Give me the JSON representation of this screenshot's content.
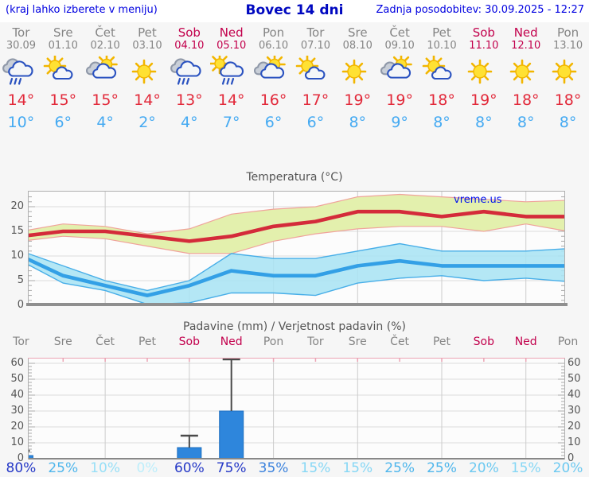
{
  "header": {
    "left_note": "(kraj lahko izberete v meniju)",
    "title": "Bovec 14 dni",
    "updated": "Zadnja posodobitev: 30.09.2025 - 12:27"
  },
  "watermark": "vreme.us",
  "colors": {
    "accent_blue": "#0000e0",
    "weekend_red": "#c2004c",
    "weekday_gray": "#848484",
    "tmax_red": "#e2293a",
    "tmin_blue": "#45aaf2",
    "max_band": "#e3f0ad",
    "max_band_edge": "#f0a39b",
    "min_band": "#aae4f4",
    "min_band_edge": "#47aee8",
    "bar_blue": "#2e86dc",
    "grid": "#dddddd",
    "precip_top_border": "#eba4b4"
  },
  "days": [
    {
      "name": "Tor",
      "date": "30.09",
      "weekend": false,
      "icon": "rain",
      "tmax": "14°",
      "tmin": "10°",
      "prob": "80%",
      "prob_color": "#2639c7"
    },
    {
      "name": "Sre",
      "date": "01.10",
      "weekend": false,
      "icon": "sun-cloud",
      "tmax": "15°",
      "tmin": "6°",
      "prob": "25%",
      "prob_color": "#4fb6ec"
    },
    {
      "name": "Čet",
      "date": "02.10",
      "weekend": false,
      "icon": "cloud-sun",
      "tmax": "15°",
      "tmin": "4°",
      "prob": "10%",
      "prob_color": "#97dff7"
    },
    {
      "name": "Pet",
      "date": "03.10",
      "weekend": false,
      "icon": "sun",
      "tmax": "14°",
      "tmin": "2°",
      "prob": "0%",
      "prob_color": "#bdeefb"
    },
    {
      "name": "Sob",
      "date": "04.10",
      "weekend": true,
      "icon": "rain",
      "tmax": "13°",
      "tmin": "4°",
      "prob": "60%",
      "prob_color": "#2639c7"
    },
    {
      "name": "Ned",
      "date": "05.10",
      "weekend": true,
      "icon": "sun-rain",
      "tmax": "14°",
      "tmin": "7°",
      "prob": "75%",
      "prob_color": "#2639c7"
    },
    {
      "name": "Pon",
      "date": "06.10",
      "weekend": false,
      "icon": "cloud-sun",
      "tmax": "16°",
      "tmin": "6°",
      "prob": "35%",
      "prob_color": "#3b82dd"
    },
    {
      "name": "Tor",
      "date": "07.10",
      "weekend": false,
      "icon": "sun-cloud",
      "tmax": "17°",
      "tmin": "6°",
      "prob": "15%",
      "prob_color": "#86d7f5"
    },
    {
      "name": "Sre",
      "date": "08.10",
      "weekend": false,
      "icon": "sun",
      "tmax": "19°",
      "tmin": "8°",
      "prob": "15%",
      "prob_color": "#86d7f5"
    },
    {
      "name": "Čet",
      "date": "09.10",
      "weekend": false,
      "icon": "cloud-sun",
      "tmax": "19°",
      "tmin": "9°",
      "prob": "25%",
      "prob_color": "#4fb6ec"
    },
    {
      "name": "Pet",
      "date": "10.10",
      "weekend": false,
      "icon": "sun-cloud",
      "tmax": "18°",
      "tmin": "8°",
      "prob": "25%",
      "prob_color": "#4fb6ec"
    },
    {
      "name": "Sob",
      "date": "11.10",
      "weekend": true,
      "icon": "sun",
      "tmax": "19°",
      "tmin": "8°",
      "prob": "20%",
      "prob_color": "#6cc9f1"
    },
    {
      "name": "Ned",
      "date": "12.10",
      "weekend": true,
      "icon": "sun",
      "tmax": "18°",
      "tmin": "8°",
      "prob": "15%",
      "prob_color": "#86d7f5"
    },
    {
      "name": "Pon",
      "date": "13.10",
      "weekend": false,
      "icon": "sun",
      "tmax": "18°",
      "tmin": "8°",
      "prob": "20%",
      "prob_color": "#6cc9f1"
    }
  ],
  "chart_data": [
    {
      "type": "line",
      "title": "Temperatura (°C)",
      "categories": [
        "Tor",
        "Sre",
        "Čet",
        "Pet",
        "Sob",
        "Ned",
        "Pon",
        "Tor",
        "Sre",
        "Čet",
        "Pet",
        "Sob",
        "Ned",
        "Pon"
      ],
      "ylim": [
        0,
        23
      ],
      "yticks": [
        0,
        5,
        10,
        15,
        20
      ],
      "grid": "on",
      "series": [
        {
          "name": "max temperatura",
          "values": [
            14,
            15,
            15,
            14,
            13,
            14,
            16,
            17,
            19,
            19,
            18,
            19,
            18,
            18
          ]
        },
        {
          "name": "max razpon zgoraj",
          "values": [
            15,
            16.5,
            16,
            14.5,
            15.5,
            18.5,
            19.5,
            20,
            22,
            22.5,
            22,
            21.5,
            21,
            21.3
          ]
        },
        {
          "name": "max razpon spodaj",
          "values": [
            13,
            14,
            13.5,
            12,
            10.5,
            10.5,
            13,
            14.5,
            15.5,
            16,
            16,
            15,
            16.5,
            15
          ]
        },
        {
          "name": "min temperatura",
          "values": [
            10,
            6,
            4,
            2,
            4,
            7,
            6,
            6,
            8,
            9,
            8,
            8,
            8,
            8
          ]
        },
        {
          "name": "min razpon zgoraj",
          "values": [
            11,
            8,
            5,
            3,
            5,
            10.5,
            9.5,
            9.5,
            11,
            12.5,
            11,
            11,
            11,
            11.5
          ]
        },
        {
          "name": "min razpon spodaj",
          "values": [
            9,
            4.5,
            3,
            0.2,
            0.5,
            2.5,
            2.5,
            2,
            4.5,
            5.5,
            6,
            5,
            5.5,
            4.8
          ]
        }
      ]
    },
    {
      "type": "bar",
      "title": "Padavine (mm) / Verjetnost padavin (%)",
      "categories": [
        "Tor",
        "Sre",
        "Čet",
        "Pet",
        "Sob",
        "Ned",
        "Pon",
        "Tor",
        "Sre",
        "Čet",
        "Pet",
        "Sob",
        "Ned",
        "Pon"
      ],
      "ylim": [
        0,
        60
      ],
      "yticks": [
        0,
        10,
        20,
        30,
        40,
        50,
        60
      ],
      "grid": "on",
      "values": [
        2,
        0,
        0,
        0,
        7,
        30,
        0,
        0,
        0,
        0,
        0,
        0,
        0,
        0
      ],
      "max_values": [
        5,
        0,
        0,
        0,
        14.5,
        65,
        0,
        0,
        0,
        0,
        0,
        0,
        0,
        0
      ],
      "probabilities": [
        80,
        25,
        10,
        0,
        60,
        75,
        35,
        15,
        15,
        25,
        25,
        20,
        15,
        20
      ]
    }
  ]
}
